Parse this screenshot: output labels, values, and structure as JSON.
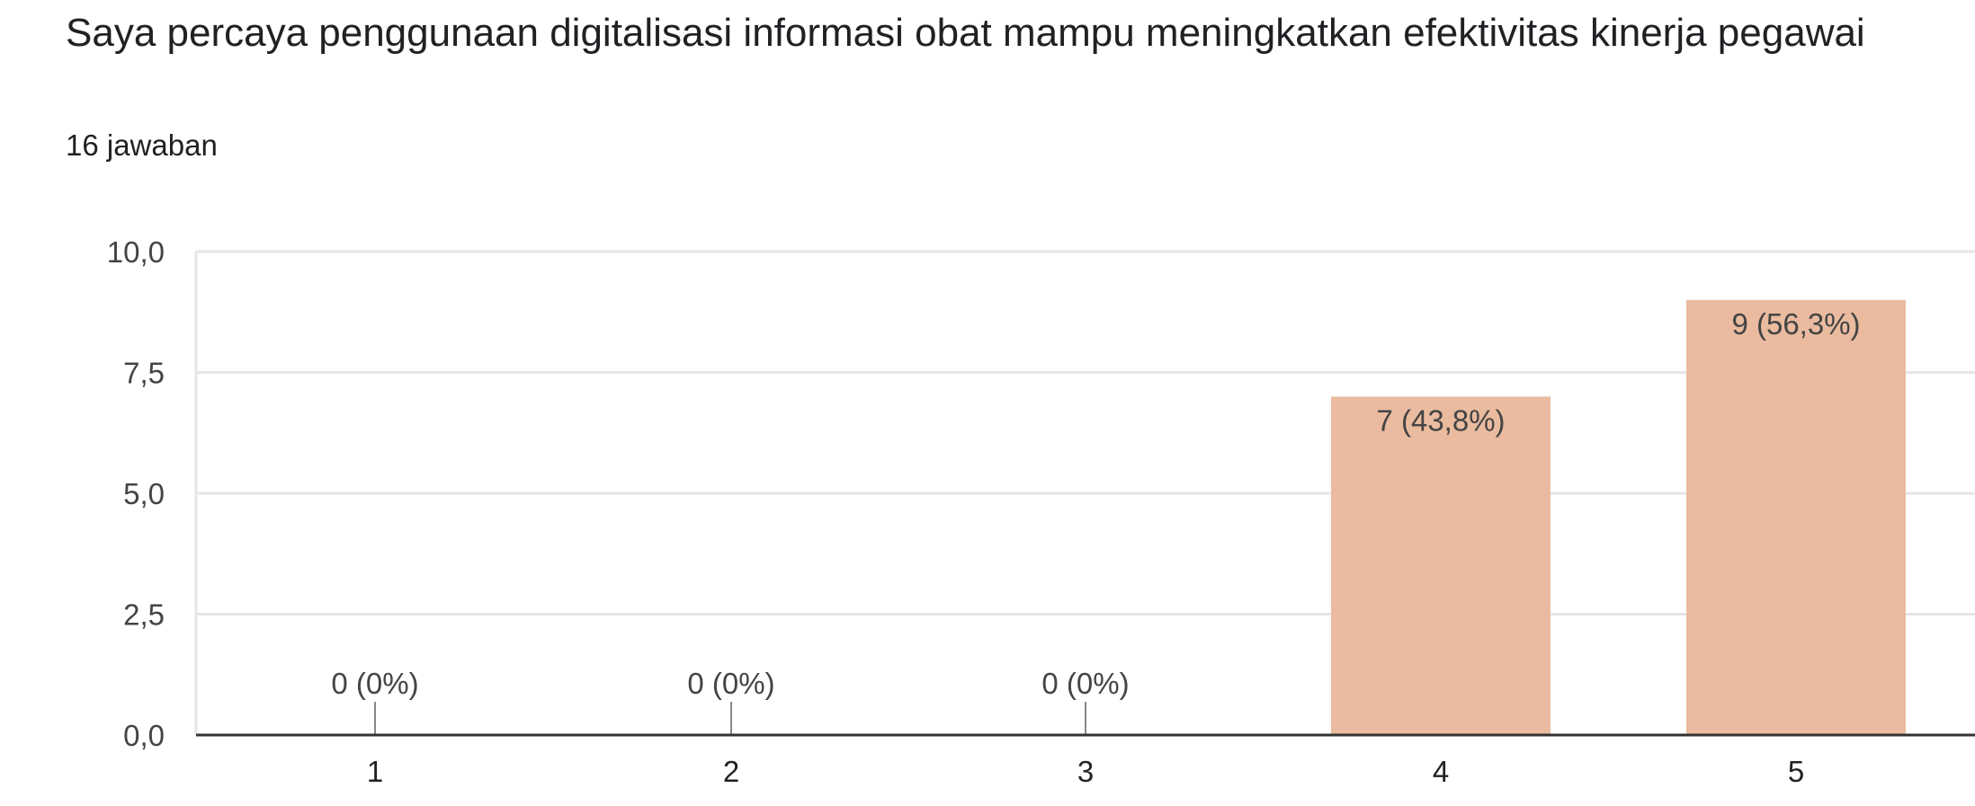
{
  "header": {
    "question": "Saya percaya penggunaan digitalisasi informasi obat mampu meningkatkan efektivitas kinerja pegawai",
    "responses": "16 jawaban"
  },
  "colors": {
    "bar": "#eabb9f",
    "grid": "#e6e6e6",
    "axis": "#333333",
    "text": "#444444",
    "zero_tick": "#888888"
  },
  "chart_data": {
    "type": "bar",
    "categories": [
      "1",
      "2",
      "3",
      "4",
      "5"
    ],
    "values": [
      0,
      0,
      0,
      7,
      9
    ],
    "data_labels": [
      "0 (0%)",
      "0 (0%)",
      "0 (0%)",
      "7 (43,8%)",
      "9 (56,3%)"
    ],
    "ylim": [
      0,
      10
    ],
    "yticks": [
      0,
      2.5,
      5,
      7.5,
      10
    ],
    "ytick_labels": [
      "0,0",
      "2,5",
      "5,0",
      "7,5",
      "10,0"
    ],
    "grid": true,
    "xlabel": "",
    "ylabel": ""
  }
}
